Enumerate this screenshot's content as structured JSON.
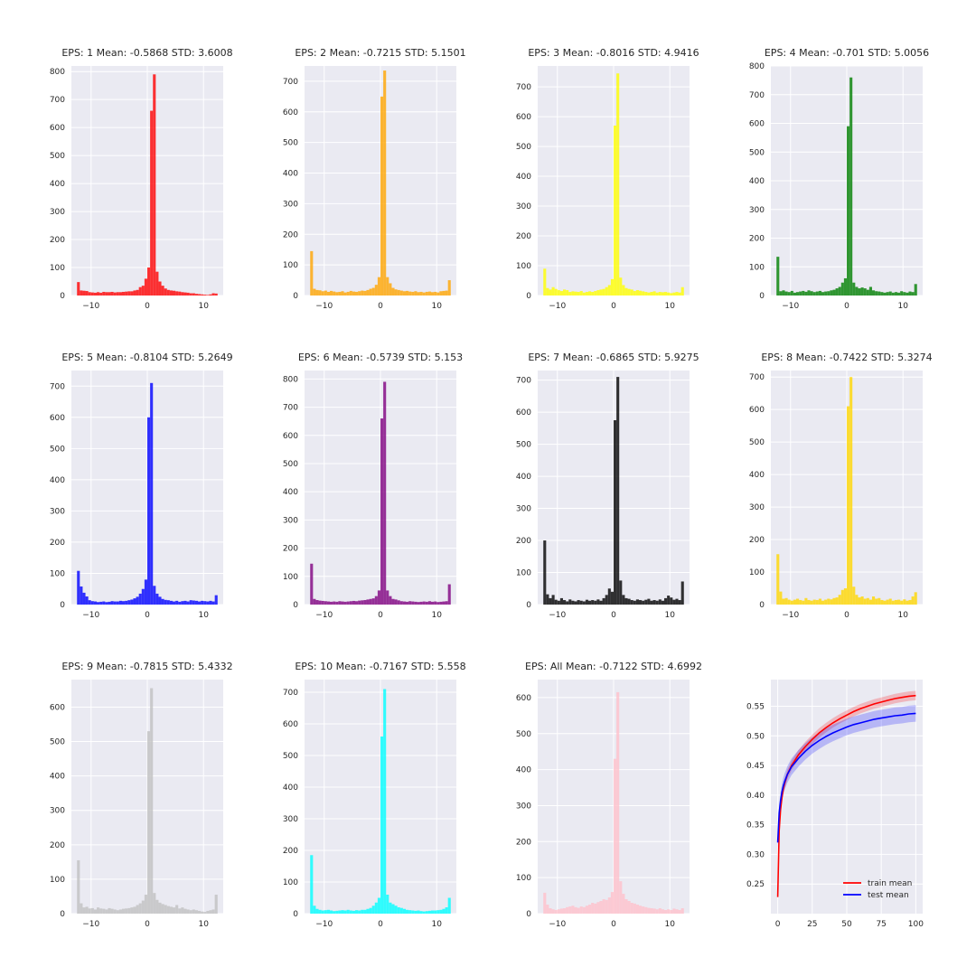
{
  "colors": {
    "axes_background": "#eaeaf2",
    "grid": "#ffffff",
    "text": "#262626"
  },
  "chart_data": [
    {
      "type": "bar",
      "title": "EPS: 1 Mean: -0.5868 STD: 3.6008",
      "color": "#ff0000",
      "xlim": [
        -13.5,
        13.5
      ],
      "ylim": [
        0,
        820
      ],
      "xticks": [
        -10,
        0,
        10
      ],
      "yticks": [
        0,
        100,
        200,
        300,
        400,
        500,
        600,
        700,
        800
      ],
      "bins": {
        "start": -12.5,
        "width": 0.5,
        "counts": [
          48,
          18,
          17,
          16,
          12,
          11,
          10,
          12,
          10,
          13,
          12,
          12,
          13,
          11,
          12,
          12,
          13,
          14,
          15,
          15,
          18,
          20,
          30,
          35,
          60,
          100,
          660,
          790,
          85,
          50,
          35,
          25,
          20,
          18,
          17,
          15,
          14,
          12,
          11,
          10,
          8,
          8,
          6,
          5,
          4,
          3,
          2,
          4,
          8,
          7
        ]
      }
    },
    {
      "type": "bar",
      "title": "EPS: 2 Mean: -0.7215 STD: 5.1501",
      "color": "#ffa500",
      "xlim": [
        -13.5,
        13.5
      ],
      "ylim": [
        0,
        750
      ],
      "xticks": [
        -10,
        0,
        10
      ],
      "yticks": [
        0,
        100,
        200,
        300,
        400,
        500,
        600,
        700
      ],
      "bins": {
        "start": -12.5,
        "width": 0.5,
        "counts": [
          145,
          22,
          18,
          17,
          14,
          16,
          12,
          15,
          13,
          11,
          12,
          14,
          10,
          12,
          15,
          13,
          12,
          14,
          16,
          15,
          18,
          22,
          25,
          35,
          60,
          650,
          735,
          60,
          40,
          25,
          20,
          18,
          16,
          14,
          15,
          13,
          12,
          14,
          11,
          12,
          10,
          12,
          13,
          11,
          12,
          10,
          14,
          15,
          16,
          50
        ]
      }
    },
    {
      "type": "bar",
      "title": "EPS: 3 Mean: -0.8016 STD: 4.9416",
      "color": "#ffff00",
      "xlim": [
        -13.5,
        13.5
      ],
      "ylim": [
        0,
        770
      ],
      "xticks": [
        -10,
        0,
        10
      ],
      "yticks": [
        0,
        100,
        200,
        300,
        400,
        500,
        600,
        700
      ],
      "bins": {
        "start": -12.5,
        "width": 0.5,
        "counts": [
          90,
          25,
          20,
          28,
          22,
          18,
          15,
          20,
          18,
          12,
          14,
          13,
          12,
          15,
          10,
          12,
          14,
          12,
          15,
          18,
          20,
          22,
          28,
          35,
          55,
          570,
          745,
          60,
          35,
          25,
          22,
          20,
          15,
          18,
          16,
          14,
          12,
          10,
          12,
          14,
          10,
          12,
          11,
          12,
          10,
          8,
          10,
          12,
          10,
          28
        ]
      }
    },
    {
      "type": "bar",
      "title": "EPS: 4 Mean: -0.701 STD: 5.0056",
      "color": "#008000",
      "xlim": [
        -13.5,
        13.5
      ],
      "ylim": [
        0,
        800
      ],
      "xticks": [
        -10,
        0,
        10
      ],
      "yticks": [
        0,
        100,
        200,
        300,
        400,
        500,
        600,
        700,
        800
      ],
      "bins": {
        "start": -12.5,
        "width": 0.5,
        "counts": [
          135,
          15,
          18,
          14,
          12,
          16,
          10,
          12,
          14,
          16,
          13,
          18,
          15,
          12,
          14,
          16,
          12,
          14,
          15,
          18,
          20,
          25,
          30,
          45,
          60,
          590,
          760,
          45,
          30,
          25,
          28,
          25,
          20,
          30,
          18,
          15,
          14,
          12,
          10,
          12,
          14,
          10,
          12,
          10,
          15,
          12,
          10,
          14,
          12,
          40
        ]
      }
    },
    {
      "type": "bar",
      "title": "EPS: 5 Mean: -0.8104 STD: 5.2649",
      "color": "#0000ff",
      "xlim": [
        -13.5,
        13.5
      ],
      "ylim": [
        0,
        750
      ],
      "xticks": [
        -10,
        0,
        10
      ],
      "yticks": [
        0,
        100,
        200,
        300,
        400,
        500,
        600,
        700
      ],
      "bins": {
        "start": -12.5,
        "width": 0.5,
        "counts": [
          108,
          58,
          38,
          26,
          14,
          11,
          10,
          8,
          9,
          10,
          8,
          9,
          11,
          10,
          10,
          12,
          11,
          12,
          14,
          16,
          20,
          25,
          35,
          50,
          80,
          600,
          710,
          60,
          35,
          25,
          18,
          15,
          14,
          12,
          10,
          12,
          9,
          11,
          12,
          10,
          14,
          13,
          12,
          10,
          12,
          11,
          10,
          12,
          10,
          30
        ]
      }
    },
    {
      "type": "bar",
      "title": "EPS: 6 Mean: -0.5739 STD: 5.153",
      "color": "#800080",
      "xlim": [
        -13.5,
        13.5
      ],
      "ylim": [
        0,
        830
      ],
      "xticks": [
        -10,
        0,
        10
      ],
      "yticks": [
        0,
        100,
        200,
        300,
        400,
        500,
        600,
        700,
        800
      ],
      "bins": {
        "start": -12.5,
        "width": 0.5,
        "counts": [
          145,
          20,
          16,
          14,
          13,
          12,
          11,
          10,
          11,
          10,
          12,
          11,
          10,
          11,
          12,
          13,
          12,
          14,
          15,
          16,
          18,
          20,
          22,
          30,
          50,
          660,
          790,
          50,
          30,
          20,
          18,
          15,
          12,
          11,
          10,
          12,
          11,
          10,
          9,
          10,
          11,
          10,
          12,
          10,
          11,
          9,
          10,
          11,
          12,
          72
        ]
      }
    },
    {
      "type": "bar",
      "title": "EPS: 7 Mean: -0.6865 STD: 5.9275",
      "color": "#000000",
      "xlim": [
        -13.5,
        13.5
      ],
      "ylim": [
        0,
        730
      ],
      "xticks": [
        -10,
        0,
        10
      ],
      "yticks": [
        0,
        100,
        200,
        300,
        400,
        500,
        600,
        700
      ],
      "bins": {
        "start": -12.5,
        "width": 0.5,
        "counts": [
          200,
          32,
          20,
          30,
          15,
          12,
          20,
          14,
          10,
          16,
          12,
          10,
          14,
          12,
          10,
          15,
          12,
          14,
          12,
          16,
          12,
          20,
          30,
          50,
          40,
          575,
          710,
          75,
          30,
          20,
          18,
          14,
          12,
          16,
          14,
          12,
          15,
          18,
          12,
          14,
          12,
          16,
          12,
          20,
          28,
          22,
          15,
          18,
          14,
          72
        ]
      }
    },
    {
      "type": "bar",
      "title": "EPS: 8 Mean: -0.7422 STD: 5.3274",
      "color": "#ffd700",
      "xlim": [
        -13.5,
        13.5
      ],
      "ylim": [
        0,
        720
      ],
      "xticks": [
        -10,
        0,
        10
      ],
      "yticks": [
        0,
        100,
        200,
        300,
        400,
        500,
        600,
        700
      ],
      "bins": {
        "start": -12.5,
        "width": 0.5,
        "counts": [
          155,
          40,
          18,
          20,
          15,
          12,
          15,
          18,
          14,
          12,
          20,
          14,
          12,
          15,
          14,
          18,
          12,
          15,
          18,
          16,
          20,
          22,
          30,
          45,
          50,
          610,
          700,
          55,
          30,
          22,
          25,
          18,
          20,
          15,
          25,
          18,
          20,
          14,
          12,
          15,
          18,
          12,
          14,
          15,
          12,
          16,
          12,
          14,
          25,
          38
        ]
      }
    },
    {
      "type": "bar",
      "title": "EPS: 9 Mean: -0.7815 STD: 5.4332",
      "color": "#c0c0c0",
      "xlim": [
        -13.5,
        13.5
      ],
      "ylim": [
        0,
        680
      ],
      "xticks": [
        -10,
        0,
        10
      ],
      "yticks": [
        0,
        100,
        200,
        300,
        400,
        500,
        600
      ],
      "bins": {
        "start": -12.5,
        "width": 0.5,
        "counts": [
          155,
          30,
          18,
          20,
          15,
          16,
          12,
          18,
          15,
          14,
          12,
          16,
          14,
          12,
          10,
          12,
          14,
          15,
          16,
          18,
          20,
          25,
          30,
          38,
          55,
          530,
          655,
          60,
          40,
          32,
          28,
          25,
          22,
          20,
          18,
          25,
          15,
          18,
          14,
          12,
          10,
          12,
          10,
          8,
          6,
          5,
          8,
          10,
          12,
          55
        ]
      }
    },
    {
      "type": "bar",
      "title": "EPS: 10 Mean: -0.7167 STD: 5.558",
      "color": "#00ffff",
      "xlim": [
        -13.5,
        13.5
      ],
      "ylim": [
        0,
        740
      ],
      "xticks": [
        -10,
        0,
        10
      ],
      "yticks": [
        0,
        100,
        200,
        300,
        400,
        500,
        600,
        700
      ],
      "bins": {
        "start": -12.5,
        "width": 0.5,
        "counts": [
          185,
          25,
          15,
          12,
          10,
          11,
          12,
          10,
          8,
          9,
          10,
          11,
          10,
          12,
          10,
          9,
          11,
          10,
          12,
          12,
          15,
          18,
          25,
          35,
          50,
          560,
          710,
          60,
          35,
          30,
          25,
          20,
          18,
          15,
          12,
          11,
          10,
          9,
          10,
          8,
          7,
          8,
          9,
          10,
          10,
          11,
          12,
          15,
          20,
          50
        ]
      }
    },
    {
      "type": "bar",
      "title": "EPS: All Mean: -0.7122 STD: 4.6992",
      "color": "#ffc0cb",
      "xlim": [
        -13.5,
        13.5
      ],
      "ylim": [
        0,
        650
      ],
      "xticks": [
        -10,
        0,
        10
      ],
      "yticks": [
        0,
        100,
        200,
        300,
        400,
        500,
        600
      ],
      "bins": {
        "start": -12.5,
        "width": 0.5,
        "counts": [
          58,
          25,
          15,
          12,
          10,
          12,
          14,
          15,
          18,
          20,
          22,
          18,
          16,
          20,
          18,
          22,
          25,
          30,
          28,
          32,
          35,
          40,
          38,
          45,
          60,
          430,
          615,
          90,
          55,
          40,
          35,
          30,
          28,
          25,
          22,
          20,
          18,
          16,
          15,
          14,
          12,
          15,
          12,
          10,
          12,
          10,
          14,
          12,
          10,
          15
        ]
      }
    },
    {
      "type": "line",
      "title": "",
      "xlim": [
        -5,
        105
      ],
      "ylim": [
        0.2,
        0.595
      ],
      "xticks": [
        0,
        25,
        50,
        75,
        100
      ],
      "yticks": [
        0.25,
        0.3,
        0.35,
        0.4,
        0.45,
        0.5,
        0.55
      ],
      "legend_position": "lower-right",
      "series": [
        {
          "name": "train mean",
          "color": "#ff0000",
          "band": 0.008,
          "x": [
            0,
            1,
            2,
            3,
            4,
            5,
            7,
            10,
            15,
            20,
            25,
            30,
            35,
            40,
            45,
            50,
            55,
            60,
            65,
            70,
            75,
            80,
            85,
            90,
            95,
            100
          ],
          "y": [
            0.228,
            0.34,
            0.375,
            0.395,
            0.41,
            0.42,
            0.435,
            0.45,
            0.468,
            0.482,
            0.494,
            0.505,
            0.514,
            0.522,
            0.529,
            0.535,
            0.541,
            0.546,
            0.55,
            0.554,
            0.557,
            0.56,
            0.563,
            0.565,
            0.567,
            0.568
          ]
        },
        {
          "name": "test mean",
          "color": "#0000ff",
          "band": 0.014,
          "x": [
            0,
            1,
            2,
            3,
            4,
            5,
            7,
            10,
            15,
            20,
            25,
            30,
            35,
            40,
            45,
            50,
            55,
            60,
            65,
            70,
            75,
            80,
            85,
            90,
            95,
            100
          ],
          "y": [
            0.32,
            0.37,
            0.39,
            0.405,
            0.415,
            0.423,
            0.435,
            0.448,
            0.462,
            0.474,
            0.484,
            0.492,
            0.499,
            0.505,
            0.51,
            0.515,
            0.519,
            0.522,
            0.525,
            0.528,
            0.53,
            0.532,
            0.534,
            0.535,
            0.537,
            0.538
          ]
        }
      ]
    }
  ]
}
